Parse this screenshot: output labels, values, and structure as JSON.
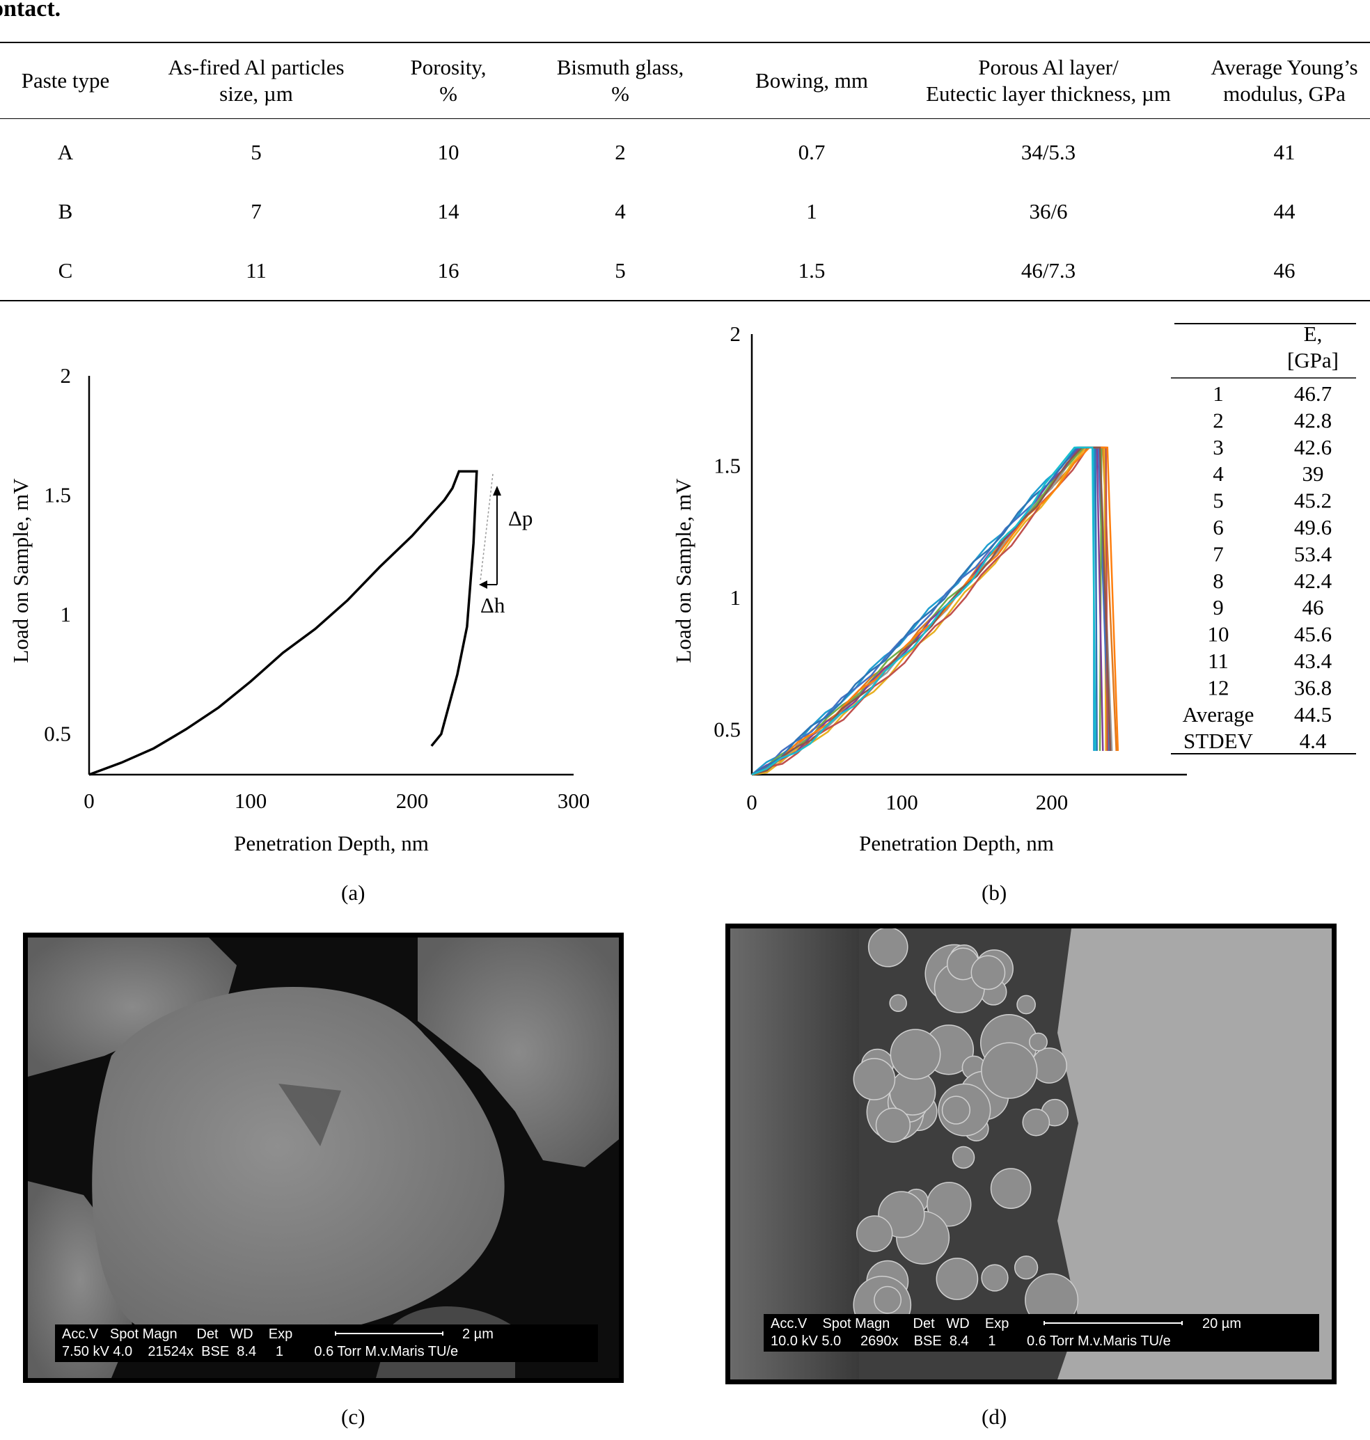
{
  "heading": "ontact.",
  "table": {
    "headers": [
      [
        "Paste type"
      ],
      [
        "As-fired Al particles",
        "size, µm"
      ],
      [
        "Porosity,",
        "%"
      ],
      [
        "Bismuth glass,",
        "%"
      ],
      [
        "Bowing, mm"
      ],
      [
        "Porous Al layer/",
        "Eutectic layer thickness, µm"
      ],
      [
        "Average Young’s",
        "modulus, GPa"
      ]
    ],
    "rows": [
      [
        "A",
        "5",
        "10",
        "2",
        "0.7",
        "34/5.3",
        "41"
      ],
      [
        "B",
        "7",
        "14",
        "4",
        "1",
        "36/6",
        "44"
      ],
      [
        "C",
        "11",
        "16",
        "5",
        "1.5",
        "46/7.3",
        "46"
      ]
    ]
  },
  "chart_data": [
    {
      "type": "line",
      "panel": "(a)",
      "xlabel": "Penetration Depth, nm",
      "ylabel": "Load on Sample, mV",
      "xticks": [
        "0",
        "100",
        "200",
        "300"
      ],
      "yticks": [
        "0.5",
        "1",
        "1.5",
        "2"
      ],
      "xlim": [
        0,
        300
      ],
      "ylim": [
        0.33,
        2
      ],
      "series": [
        {
          "color": "#000000",
          "points": [
            [
              0,
              0.33
            ],
            [
              20,
              0.38
            ],
            [
              40,
              0.44
            ],
            [
              60,
              0.52
            ],
            [
              80,
              0.61
            ],
            [
              100,
              0.72
            ],
            [
              120,
              0.84
            ],
            [
              140,
              0.94
            ],
            [
              160,
              1.06
            ],
            [
              180,
              1.2
            ],
            [
              200,
              1.33
            ],
            [
              220,
              1.48
            ],
            [
              225,
              1.53
            ],
            [
              229,
              1.6
            ],
            [
              240,
              1.6
            ],
            [
              238,
              1.3
            ],
            [
              234,
              0.95
            ],
            [
              228,
              0.75
            ],
            [
              218,
              0.5
            ],
            [
              212,
              0.45
            ]
          ]
        }
      ],
      "annotations": [
        "Δp",
        "Δh"
      ]
    },
    {
      "type": "line",
      "panel": "(b)",
      "xlabel": "Penetration Depth, nm",
      "ylabel": "Load on Sample, mV",
      "xticks": [
        "0",
        "100",
        "200"
      ],
      "yticks": [
        "0.5",
        "1",
        "1.5",
        "2"
      ],
      "xlim": [
        0,
        290
      ],
      "ylim": [
        0.33,
        2
      ],
      "series": [
        {
          "color": "#1f9fd0",
          "peak_x": 216,
          "end_x": 228
        },
        {
          "color": "#e07a1f",
          "peak_x": 222,
          "end_x": 243
        },
        {
          "color": "#9a9a9a",
          "peak_x": 220,
          "end_x": 240
        },
        {
          "color": "#e8b020",
          "peak_x": 223,
          "end_x": 236
        },
        {
          "color": "#4472c4",
          "peak_x": 219,
          "end_x": 238
        },
        {
          "color": "#70ad47",
          "peak_x": 221,
          "end_x": 232
        },
        {
          "color": "#7f3f98",
          "peak_x": 218,
          "end_x": 234
        },
        {
          "color": "#c0504d",
          "peak_x": 224,
          "end_x": 237
        },
        {
          "color": "#2e75b6",
          "peak_x": 217,
          "end_x": 230
        },
        {
          "color": "#ff7f0e",
          "peak_x": 225,
          "end_x": 244
        },
        {
          "color": "#8c564b",
          "peak_x": 220,
          "end_x": 239
        },
        {
          "color": "#17becf",
          "peak_x": 215,
          "end_x": 229
        }
      ],
      "table": {
        "header": [
          "",
          "E,",
          "[GPa]"
        ],
        "rows": [
          [
            "1",
            "46.7"
          ],
          [
            "2",
            "42.8"
          ],
          [
            "3",
            "42.6"
          ],
          [
            "4",
            "39"
          ],
          [
            "5",
            "45.2"
          ],
          [
            "6",
            "49.6"
          ],
          [
            "7",
            "53.4"
          ],
          [
            "8",
            "42.4"
          ],
          [
            "9",
            "46"
          ],
          [
            "10",
            "45.6"
          ],
          [
            "11",
            "43.4"
          ],
          [
            "12",
            "36.8"
          ],
          [
            "Average",
            "44.5"
          ],
          [
            "STDEV",
            "4.4"
          ]
        ]
      }
    }
  ],
  "captions": {
    "a": "(a)",
    "b": "(b)",
    "c": "(c)",
    "d": "(d)"
  },
  "sem_c": {
    "line1": "Acc.V   Spot Magn     Det   WD    Exp",
    "line2": "7.50 kV 4.0    21524x  BSE  8.4     1        0.6 Torr M.v.Maris TU/e",
    "scale": "2 µm"
  },
  "sem_d": {
    "line1": "Acc.V    Spot Magn      Det   WD    Exp",
    "line2": "10.0 kV 5.0     2690x    BSE  8.4     1        0.6 Torr M.v.Maris TU/e",
    "scale": "20 µm"
  }
}
